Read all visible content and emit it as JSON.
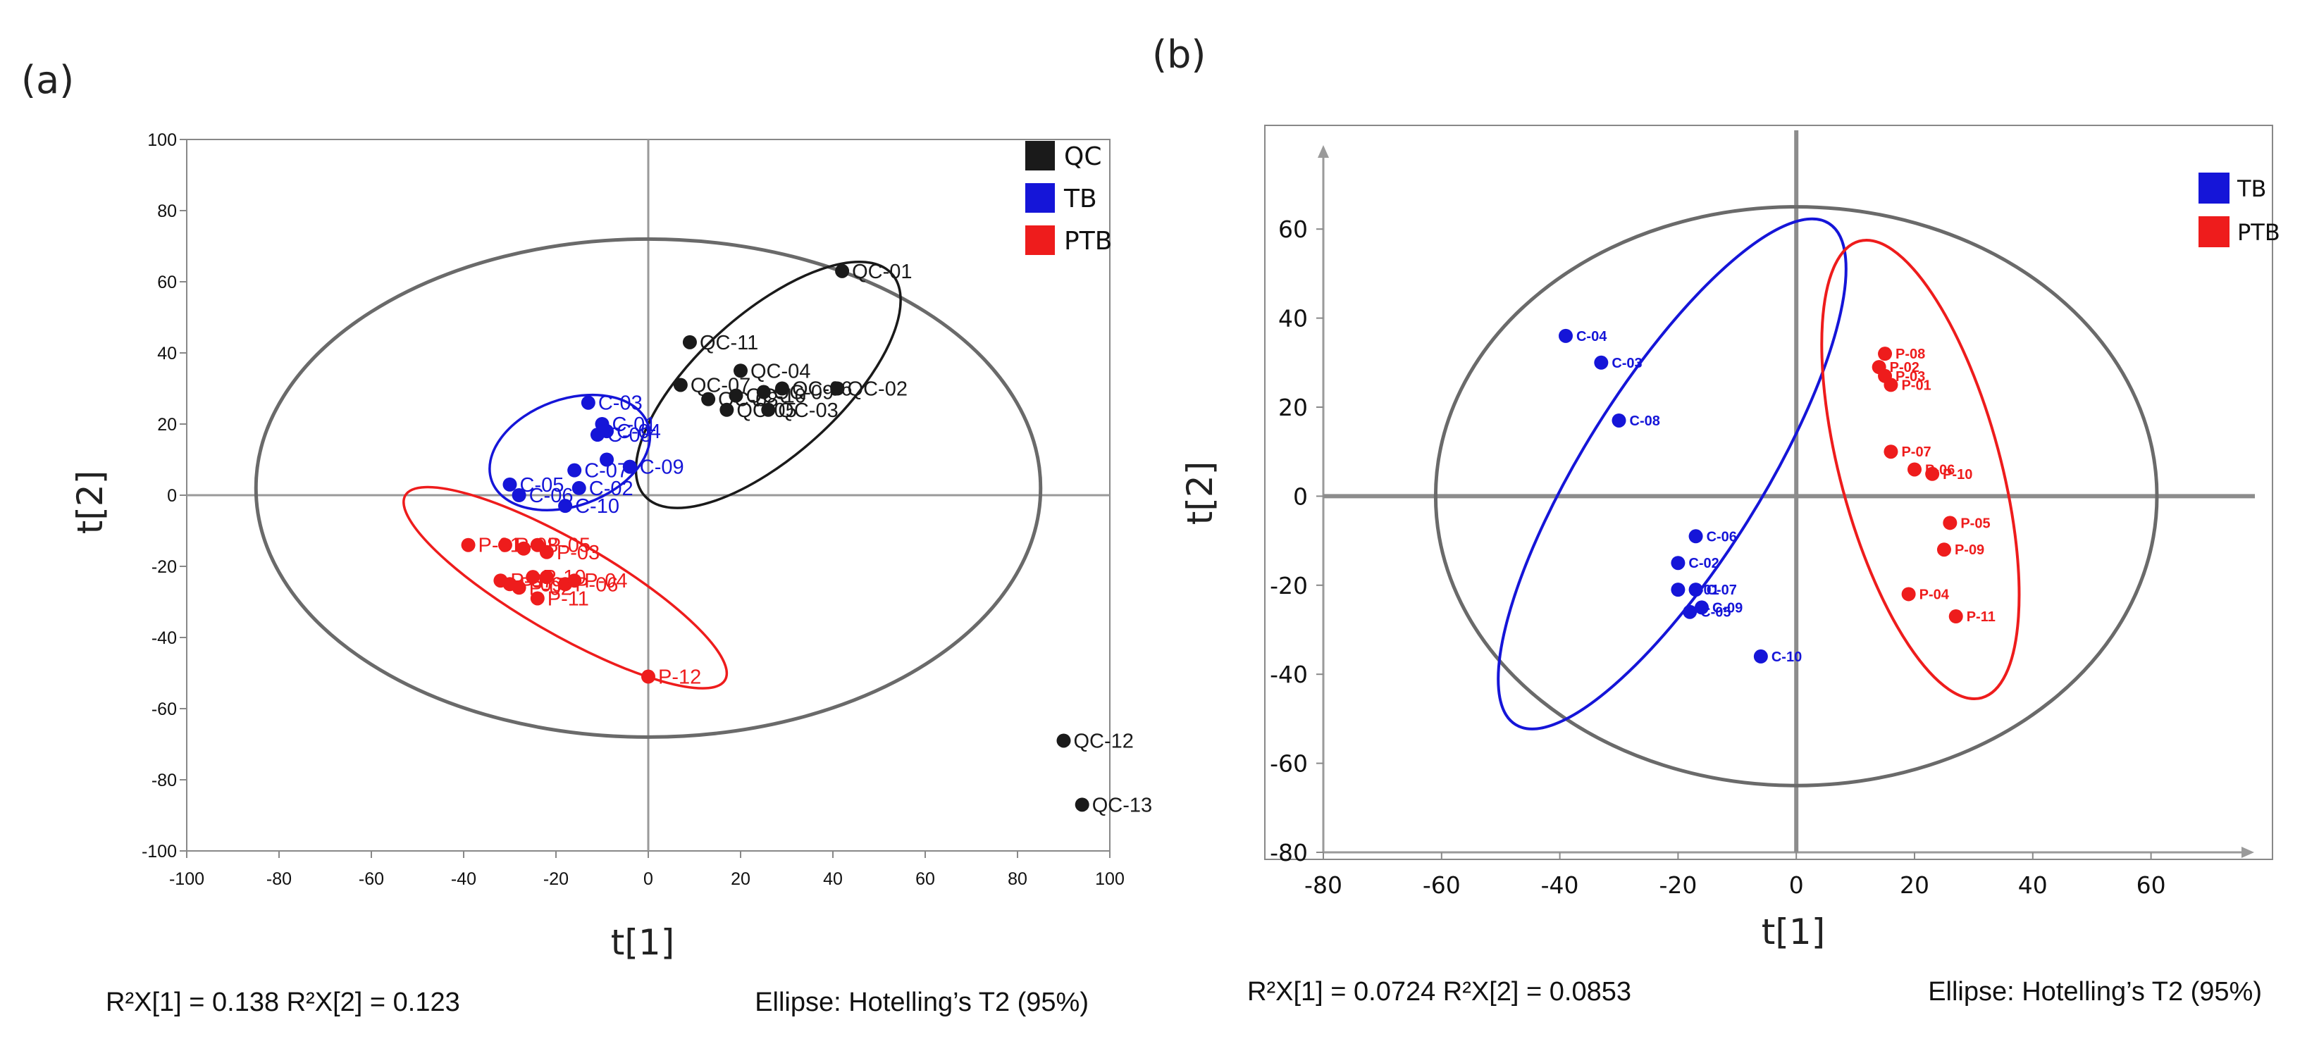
{
  "panels": {
    "a": {
      "label": "(a)"
    },
    "b": {
      "label": "(b)"
    }
  },
  "colors": {
    "QC": "#1a1a1a",
    "TB": "#1515d8",
    "PTB": "#ee1c1c",
    "ellipse": "#666666",
    "frame": "#888888"
  },
  "chart_data": [
    {
      "id": "a",
      "type": "scatter",
      "xlabel": "t[1]",
      "ylabel": "t[2]",
      "xlim": [
        -100,
        100
      ],
      "ylim": [
        -100,
        100
      ],
      "xticks": [
        -100,
        -80,
        -60,
        -40,
        -20,
        0,
        20,
        40,
        60,
        80,
        100
      ],
      "yticks": [
        -100,
        -80,
        -60,
        -40,
        -20,
        0,
        20,
        40,
        60,
        80,
        100
      ],
      "footer_left": "R²X[1] = 0.138    R²X[2] = 0.123",
      "footer_right": "Ellipse: Hotelling’s T2 (95%)",
      "legend": [
        {
          "name": "QC",
          "color": "#1a1a1a"
        },
        {
          "name": "TB",
          "color": "#1515d8"
        },
        {
          "name": "PTB",
          "color": "#ee1c1c"
        }
      ],
      "hotelling_ellipse": {
        "cx": 0,
        "cy": 2,
        "rx": 85,
        "ry": 70
      },
      "group_ellipses": [
        {
          "group": "QC",
          "cx": 26,
          "cy": 31,
          "rx": 36,
          "ry": 20,
          "angle": 42
        },
        {
          "group": "TB",
          "cx": -17,
          "cy": 12,
          "rx": 18,
          "ry": 15,
          "angle": 20
        },
        {
          "group": "PTB",
          "cx": -18,
          "cy": -26,
          "rx": 40,
          "ry": 13,
          "angle": -30
        }
      ],
      "series": [
        {
          "name": "QC",
          "points": [
            {
              "label": "QC-01",
              "x": 42,
              "y": 63
            },
            {
              "label": "QC-02",
              "x": 41,
              "y": 30
            },
            {
              "label": "QC-03",
              "x": 26,
              "y": 24
            },
            {
              "label": "QC-04",
              "x": 20,
              "y": 35
            },
            {
              "label": "QC-05",
              "x": 17,
              "y": 24
            },
            {
              "label": "QC-06",
              "x": 29,
              "y": 30
            },
            {
              "label": "QC-07",
              "x": 7,
              "y": 31
            },
            {
              "label": "QC-08",
              "x": 13,
              "y": 27
            },
            {
              "label": "QC-09",
              "x": 25,
              "y": 29
            },
            {
              "label": "QC-10",
              "x": 19,
              "y": 28
            },
            {
              "label": "QC-11",
              "x": 9,
              "y": 43
            },
            {
              "label": "QC-12",
              "x": 90,
              "y": -69
            },
            {
              "label": "QC-13",
              "x": 94,
              "y": -87
            }
          ]
        },
        {
          "name": "TB",
          "points": [
            {
              "label": "C-01",
              "x": -10,
              "y": 20
            },
            {
              "label": "C-02",
              "x": -15,
              "y": 2
            },
            {
              "label": "C-03",
              "x": -13,
              "y": 26
            },
            {
              "label": "C-04",
              "x": -9,
              "y": 18
            },
            {
              "label": "C-05",
              "x": -30,
              "y": 3
            },
            {
              "label": "C-06",
              "x": -28,
              "y": 0
            },
            {
              "label": "C-07",
              "x": -16,
              "y": 7
            },
            {
              "label": "C-08",
              "x": -11,
              "y": 17
            },
            {
              "label": "C-09",
              "x": -4,
              "y": 8
            },
            {
              "label": "C-10",
              "x": -18,
              "y": -3
            },
            {
              "label": "",
              "x": -9,
              "y": 10
            }
          ]
        },
        {
          "name": "PTB",
          "points": [
            {
              "label": "P-01",
              "x": -39,
              "y": -14
            },
            {
              "label": "P-02",
              "x": -28,
              "y": -26
            },
            {
              "label": "P-03",
              "x": -22,
              "y": -16
            },
            {
              "label": "P-04",
              "x": -16,
              "y": -24
            },
            {
              "label": "P-05",
              "x": -24,
              "y": -14
            },
            {
              "label": "P-06",
              "x": -18,
              "y": -25
            },
            {
              "label": "P-07",
              "x": -32,
              "y": -24
            },
            {
              "label": "P-08",
              "x": -31,
              "y": -14
            },
            {
              "label": "P-09",
              "x": -30,
              "y": -25
            },
            {
              "label": "P-10",
              "x": -25,
              "y": -23
            },
            {
              "label": "P-11",
              "x": -24,
              "y": -29
            },
            {
              "label": "P-12",
              "x": 0,
              "y": -51
            },
            {
              "label": "",
              "x": -22,
              "y": -23
            },
            {
              "label": "",
              "x": -27,
              "y": -15
            }
          ]
        }
      ]
    },
    {
      "id": "b",
      "type": "scatter",
      "xlabel": "t[1]",
      "ylabel": "t[2]",
      "xlim": [
        -80,
        80
      ],
      "ylim": [
        -80,
        80
      ],
      "xticks": [
        -80,
        -60,
        -40,
        -20,
        0,
        20,
        40,
        60
      ],
      "yticks": [
        -80,
        -60,
        -40,
        -20,
        0,
        20,
        40,
        60
      ],
      "footer_left": "R²X[1] = 0.0724    R²X[2] = 0.0853",
      "footer_right": "Ellipse: Hotelling’s T2 (95%)",
      "legend": [
        {
          "name": "TB",
          "color": "#1515d8"
        },
        {
          "name": "PTB",
          "color": "#ee1c1c"
        }
      ],
      "hotelling_ellipse": {
        "cx": 0,
        "cy": 0,
        "rx": 61,
        "ry": 65
      },
      "group_ellipses": [
        {
          "group": "TB",
          "cx": -21,
          "cy": 5,
          "rx": 50,
          "ry": 20,
          "angle": 58
        },
        {
          "group": "PTB",
          "cx": 21,
          "cy": 6,
          "rx": 40,
          "ry": 18,
          "angle": -75
        }
      ],
      "series": [
        {
          "name": "TB",
          "points": [
            {
              "label": "C-04",
              "x": -39,
              "y": 36
            },
            {
              "label": "C-03",
              "x": -33,
              "y": 30
            },
            {
              "label": "C-08",
              "x": -30,
              "y": 17
            },
            {
              "label": "C-06",
              "x": -17,
              "y": -9
            },
            {
              "label": "C-02",
              "x": -20,
              "y": -15
            },
            {
              "label": "C-07",
              "x": -17,
              "y": -21
            },
            {
              "label": "C-01",
              "x": -20,
              "y": -21
            },
            {
              "label": "C-09",
              "x": -16,
              "y": -25
            },
            {
              "label": "C-05",
              "x": -18,
              "y": -26
            },
            {
              "label": "C-10",
              "x": -6,
              "y": -36
            }
          ]
        },
        {
          "name": "PTB",
          "points": [
            {
              "label": "P-08",
              "x": 15,
              "y": 32
            },
            {
              "label": "P-02",
              "x": 14,
              "y": 29
            },
            {
              "label": "P-03",
              "x": 15,
              "y": 27
            },
            {
              "label": "P-01",
              "x": 16,
              "y": 25
            },
            {
              "label": "P-07",
              "x": 16,
              "y": 10
            },
            {
              "label": "P-06",
              "x": 20,
              "y": 6
            },
            {
              "label": "P-10",
              "x": 23,
              "y": 5
            },
            {
              "label": "P-05",
              "x": 26,
              "y": -6
            },
            {
              "label": "P-09",
              "x": 25,
              "y": -12
            },
            {
              "label": "P-04",
              "x": 19,
              "y": -22
            },
            {
              "label": "P-11",
              "x": 27,
              "y": -27
            }
          ]
        }
      ]
    }
  ]
}
